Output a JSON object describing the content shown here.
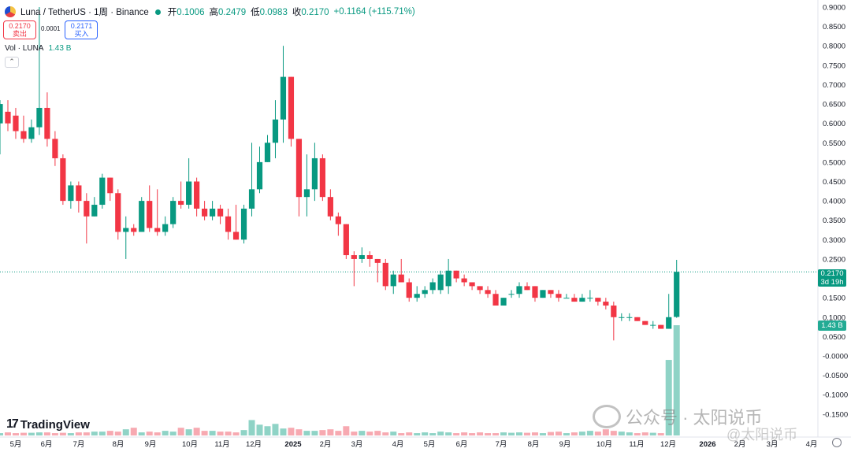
{
  "legend": {
    "symbol": "Luna / TetherUS · 1周 · Binance",
    "open_label": "开",
    "open": "0.1006",
    "high_label": "高",
    "high": "0.2479",
    "low_label": "低",
    "low": "0.0983",
    "close_label": "收",
    "close": "0.2170",
    "change": "+0.1164 (+115.71%)"
  },
  "order_boxes": {
    "sell_price": "0.2170",
    "sell_label": "卖出",
    "spread": "0.0001",
    "buy_price": "0.2171",
    "buy_label": "买入"
  },
  "volume_legend": {
    "label": "Vol · LUNA",
    "value": "1.43 B"
  },
  "price_scale_tag": {
    "price": "0.2170",
    "countdown": "3d 19h"
  },
  "volume_scale_tag": "1.43 B",
  "branding": {
    "tradingview": "TradingView"
  },
  "watermark": {
    "text": "公众号 · 太阳说币",
    "text2": "@太阳说币"
  },
  "colors": {
    "up": "#089981",
    "down": "#f23645",
    "up_vol": "#8fd3c6",
    "down_vol": "#f7a9b1"
  },
  "chart_data": {
    "type": "candlestick",
    "timeframe": "1 week",
    "ylim": [
      -0.175,
      0.9
    ],
    "y_ticks": [
      "0.9000",
      "0.8500",
      "0.8000",
      "0.7500",
      "0.7000",
      "0.6500",
      "0.6000",
      "0.5500",
      "0.5000",
      "0.4500",
      "0.4000",
      "0.3500",
      "0.3000",
      "0.2500",
      "0.2000",
      "0.1500",
      "0.1000",
      "0.0500",
      "-0.0000",
      "-0.0500",
      "-0.1000",
      "-0.1500"
    ],
    "x_labels": [
      "5月",
      "6月",
      "7月",
      "8月",
      "9月",
      "10月",
      "11月",
      "12月",
      "2025",
      "2月",
      "3月",
      "4月",
      "5月",
      "6月",
      "7月",
      "8月",
      "9月",
      "10月",
      "11月",
      "12月",
      "2026",
      "2月",
      "3月",
      "4月"
    ],
    "candles": [
      {
        "o": 0.6,
        "h": 0.66,
        "l": 0.52,
        "c": 0.65
      },
      {
        "o": 0.63,
        "h": 0.66,
        "l": 0.58,
        "c": 0.6
      },
      {
        "o": 0.62,
        "h": 0.64,
        "l": 0.56,
        "c": 0.58
      },
      {
        "o": 0.58,
        "h": 0.62,
        "l": 0.55,
        "c": 0.56
      },
      {
        "o": 0.56,
        "h": 0.61,
        "l": 0.55,
        "c": 0.59
      },
      {
        "o": 0.59,
        "h": 0.9,
        "l": 0.57,
        "c": 0.64
      },
      {
        "o": 0.64,
        "h": 0.68,
        "l": 0.54,
        "c": 0.56
      },
      {
        "o": 0.56,
        "h": 0.58,
        "l": 0.49,
        "c": 0.51
      },
      {
        "o": 0.51,
        "h": 0.52,
        "l": 0.39,
        "c": 0.4
      },
      {
        "o": 0.4,
        "h": 0.45,
        "l": 0.38,
        "c": 0.44
      },
      {
        "o": 0.44,
        "h": 0.45,
        "l": 0.37,
        "c": 0.4
      },
      {
        "o": 0.4,
        "h": 0.42,
        "l": 0.29,
        "c": 0.36
      },
      {
        "o": 0.36,
        "h": 0.41,
        "l": 0.36,
        "c": 0.39
      },
      {
        "o": 0.39,
        "h": 0.47,
        "l": 0.38,
        "c": 0.46
      },
      {
        "o": 0.46,
        "h": 0.46,
        "l": 0.4,
        "c": 0.42
      },
      {
        "o": 0.42,
        "h": 0.43,
        "l": 0.3,
        "c": 0.32
      },
      {
        "o": 0.32,
        "h": 0.36,
        "l": 0.25,
        "c": 0.33
      },
      {
        "o": 0.33,
        "h": 0.34,
        "l": 0.31,
        "c": 0.32
      },
      {
        "o": 0.32,
        "h": 0.41,
        "l": 0.32,
        "c": 0.4
      },
      {
        "o": 0.4,
        "h": 0.44,
        "l": 0.32,
        "c": 0.33
      },
      {
        "o": 0.33,
        "h": 0.43,
        "l": 0.31,
        "c": 0.32
      },
      {
        "o": 0.32,
        "h": 0.36,
        "l": 0.31,
        "c": 0.34
      },
      {
        "o": 0.34,
        "h": 0.41,
        "l": 0.33,
        "c": 0.4
      },
      {
        "o": 0.4,
        "h": 0.45,
        "l": 0.38,
        "c": 0.39
      },
      {
        "o": 0.39,
        "h": 0.51,
        "l": 0.38,
        "c": 0.45
      },
      {
        "o": 0.45,
        "h": 0.46,
        "l": 0.36,
        "c": 0.38
      },
      {
        "o": 0.38,
        "h": 0.4,
        "l": 0.35,
        "c": 0.36
      },
      {
        "o": 0.36,
        "h": 0.4,
        "l": 0.35,
        "c": 0.38
      },
      {
        "o": 0.38,
        "h": 0.39,
        "l": 0.34,
        "c": 0.36
      },
      {
        "o": 0.36,
        "h": 0.38,
        "l": 0.3,
        "c": 0.32
      },
      {
        "o": 0.32,
        "h": 0.39,
        "l": 0.3,
        "c": 0.3
      },
      {
        "o": 0.3,
        "h": 0.39,
        "l": 0.29,
        "c": 0.38
      },
      {
        "o": 0.38,
        "h": 0.55,
        "l": 0.36,
        "c": 0.43
      },
      {
        "o": 0.43,
        "h": 0.54,
        "l": 0.42,
        "c": 0.5
      },
      {
        "o": 0.5,
        "h": 0.57,
        "l": 0.5,
        "c": 0.55
      },
      {
        "o": 0.55,
        "h": 0.66,
        "l": 0.51,
        "c": 0.61
      },
      {
        "o": 0.61,
        "h": 0.8,
        "l": 0.55,
        "c": 0.72
      },
      {
        "o": 0.72,
        "h": 0.72,
        "l": 0.54,
        "c": 0.56
      },
      {
        "o": 0.56,
        "h": 0.56,
        "l": 0.36,
        "c": 0.41
      },
      {
        "o": 0.41,
        "h": 0.52,
        "l": 0.36,
        "c": 0.43
      },
      {
        "o": 0.43,
        "h": 0.55,
        "l": 0.4,
        "c": 0.51
      },
      {
        "o": 0.51,
        "h": 0.52,
        "l": 0.4,
        "c": 0.41
      },
      {
        "o": 0.41,
        "h": 0.43,
        "l": 0.35,
        "c": 0.36
      },
      {
        "o": 0.36,
        "h": 0.37,
        "l": 0.31,
        "c": 0.34
      },
      {
        "o": 0.34,
        "h": 0.34,
        "l": 0.25,
        "c": 0.26
      },
      {
        "o": 0.26,
        "h": 0.27,
        "l": 0.18,
        "c": 0.25
      },
      {
        "o": 0.25,
        "h": 0.28,
        "l": 0.24,
        "c": 0.26
      },
      {
        "o": 0.26,
        "h": 0.27,
        "l": 0.23,
        "c": 0.25
      },
      {
        "o": 0.25,
        "h": 0.25,
        "l": 0.19,
        "c": 0.24
      },
      {
        "o": 0.24,
        "h": 0.25,
        "l": 0.17,
        "c": 0.18
      },
      {
        "o": 0.18,
        "h": 0.22,
        "l": 0.16,
        "c": 0.21
      },
      {
        "o": 0.21,
        "h": 0.25,
        "l": 0.19,
        "c": 0.19
      },
      {
        "o": 0.19,
        "h": 0.2,
        "l": 0.14,
        "c": 0.15
      },
      {
        "o": 0.15,
        "h": 0.18,
        "l": 0.14,
        "c": 0.16
      },
      {
        "o": 0.16,
        "h": 0.18,
        "l": 0.15,
        "c": 0.17
      },
      {
        "o": 0.17,
        "h": 0.2,
        "l": 0.16,
        "c": 0.19
      },
      {
        "o": 0.17,
        "h": 0.22,
        "l": 0.16,
        "c": 0.21
      },
      {
        "o": 0.18,
        "h": 0.25,
        "l": 0.16,
        "c": 0.22
      },
      {
        "o": 0.22,
        "h": 0.22,
        "l": 0.19,
        "c": 0.2
      },
      {
        "o": 0.2,
        "h": 0.21,
        "l": 0.18,
        "c": 0.19
      },
      {
        "o": 0.19,
        "h": 0.19,
        "l": 0.17,
        "c": 0.18
      },
      {
        "o": 0.18,
        "h": 0.18,
        "l": 0.16,
        "c": 0.17
      },
      {
        "o": 0.17,
        "h": 0.18,
        "l": 0.15,
        "c": 0.16
      },
      {
        "o": 0.16,
        "h": 0.17,
        "l": 0.13,
        "c": 0.13
      },
      {
        "o": 0.13,
        "h": 0.15,
        "l": 0.13,
        "c": 0.15
      },
      {
        "o": 0.16,
        "h": 0.17,
        "l": 0.15,
        "c": 0.16
      },
      {
        "o": 0.16,
        "h": 0.19,
        "l": 0.15,
        "c": 0.18
      },
      {
        "o": 0.18,
        "h": 0.19,
        "l": 0.17,
        "c": 0.17
      },
      {
        "o": 0.18,
        "h": 0.18,
        "l": 0.14,
        "c": 0.15
      },
      {
        "o": 0.15,
        "h": 0.17,
        "l": 0.15,
        "c": 0.17
      },
      {
        "o": 0.17,
        "h": 0.17,
        "l": 0.15,
        "c": 0.16
      },
      {
        "o": 0.16,
        "h": 0.17,
        "l": 0.14,
        "c": 0.15
      },
      {
        "o": 0.15,
        "h": 0.16,
        "l": 0.15,
        "c": 0.15
      },
      {
        "o": 0.15,
        "h": 0.16,
        "l": 0.14,
        "c": 0.14
      },
      {
        "o": 0.14,
        "h": 0.16,
        "l": 0.14,
        "c": 0.15
      },
      {
        "o": 0.15,
        "h": 0.17,
        "l": 0.14,
        "c": 0.15
      },
      {
        "o": 0.15,
        "h": 0.15,
        "l": 0.13,
        "c": 0.14
      },
      {
        "o": 0.14,
        "h": 0.15,
        "l": 0.12,
        "c": 0.13
      },
      {
        "o": 0.13,
        "h": 0.14,
        "l": 0.04,
        "c": 0.1
      },
      {
        "o": 0.1,
        "h": 0.11,
        "l": 0.09,
        "c": 0.1
      },
      {
        "o": 0.1,
        "h": 0.11,
        "l": 0.09,
        "c": 0.1
      },
      {
        "o": 0.1,
        "h": 0.1,
        "l": 0.09,
        "c": 0.09
      },
      {
        "o": 0.09,
        "h": 0.09,
        "l": 0.08,
        "c": 0.08
      },
      {
        "o": 0.08,
        "h": 0.09,
        "l": 0.07,
        "c": 0.08
      },
      {
        "o": 0.08,
        "h": 0.08,
        "l": 0.07,
        "c": 0.07
      },
      {
        "o": 0.07,
        "h": 0.16,
        "l": 0.07,
        "c": 0.1
      },
      {
        "o": 0.1006,
        "h": 0.2479,
        "l": 0.0983,
        "c": 0.217
      }
    ],
    "volume_B": [
      0.03,
      0.04,
      0.03,
      0.035,
      0.035,
      0.04,
      0.04,
      0.03,
      0.035,
      0.03,
      0.04,
      0.04,
      0.05,
      0.05,
      0.06,
      0.05,
      0.08,
      0.1,
      0.04,
      0.05,
      0.04,
      0.06,
      0.05,
      0.1,
      0.08,
      0.1,
      0.06,
      0.06,
      0.05,
      0.05,
      0.04,
      0.07,
      0.2,
      0.14,
      0.12,
      0.15,
      0.09,
      0.1,
      0.08,
      0.06,
      0.06,
      0.07,
      0.08,
      0.06,
      0.12,
      0.05,
      0.06,
      0.05,
      0.06,
      0.04,
      0.05,
      0.03,
      0.04,
      0.03,
      0.04,
      0.03,
      0.05,
      0.04,
      0.03,
      0.04,
      0.03,
      0.04,
      0.03,
      0.03,
      0.04,
      0.035,
      0.04,
      0.035,
      0.04,
      0.03,
      0.045,
      0.05,
      0.03,
      0.04,
      0.05,
      0.06,
      0.05,
      0.08,
      0.06,
      0.05,
      0.04,
      0.03,
      0.04,
      0.035,
      0.03,
      0.98,
      1.43
    ],
    "last_price": 0.217
  }
}
